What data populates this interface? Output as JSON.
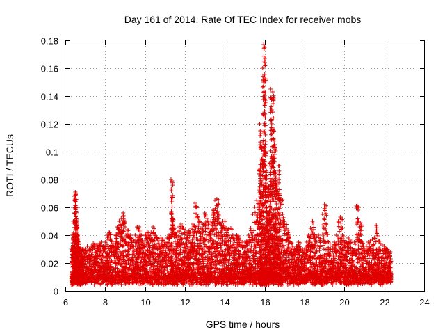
{
  "chart_data": {
    "type": "scatter",
    "title": "Day 161 of 2014, Rate Of TEC Index for receiver mobs",
    "xlabel": "GPS time / hours",
    "ylabel": "ROTI / TECUs",
    "xlim": [
      6,
      24
    ],
    "ylim": [
      0,
      0.18
    ],
    "xticks": [
      6,
      8,
      10,
      12,
      14,
      16,
      18,
      20,
      22,
      24
    ],
    "yticks": [
      0,
      0.02,
      0.04,
      0.06,
      0.08,
      0.1,
      0.12,
      0.14,
      0.16,
      0.18
    ],
    "xtick_labels": [
      "6",
      "8",
      "10",
      "12",
      "14",
      "16",
      "18",
      "20",
      "22",
      "24"
    ],
    "ytick_labels": [
      "0",
      "0.02",
      "0.04",
      "0.06",
      "0.08",
      "0.1",
      "0.12",
      "0.14",
      "0.16",
      "0.18"
    ],
    "grid": true,
    "marker": "+",
    "color": "#e00000",
    "series": [
      {
        "name": "ROTI",
        "x": [
          6.3,
          6.35,
          6.4,
          6.45,
          6.5,
          6.52,
          6.55,
          6.58,
          6.6,
          6.62,
          6.65,
          6.68,
          6.7,
          6.75,
          6.8,
          6.85,
          6.9,
          7.0,
          7.1,
          7.2,
          7.3,
          7.4,
          7.5,
          7.6,
          7.7,
          7.8,
          7.9,
          8.0,
          8.1,
          8.2,
          8.3,
          8.4,
          8.5,
          8.6,
          8.7,
          8.8,
          8.9,
          9.0,
          9.1,
          9.2,
          9.3,
          9.4,
          9.5,
          9.6,
          9.7,
          9.8,
          9.9,
          10.0,
          10.1,
          10.2,
          10.3,
          10.4,
          10.5,
          10.6,
          10.7,
          10.8,
          10.9,
          11.0,
          11.1,
          11.2,
          11.3,
          11.35,
          11.4,
          11.5,
          11.6,
          11.7,
          11.8,
          11.9,
          12.0,
          12.1,
          12.2,
          12.3,
          12.4,
          12.5,
          12.6,
          12.7,
          12.8,
          12.9,
          13.0,
          13.1,
          13.2,
          13.3,
          13.4,
          13.5,
          13.6,
          13.7,
          13.8,
          13.9,
          14.0,
          14.1,
          14.2,
          14.3,
          14.4,
          14.5,
          14.6,
          14.7,
          14.8,
          14.9,
          15.0,
          15.1,
          15.2,
          15.3,
          15.4,
          15.5,
          15.6,
          15.7,
          15.75,
          15.8,
          15.85,
          15.9,
          15.95,
          16.0,
          16.05,
          16.1,
          16.15,
          16.2,
          16.25,
          16.3,
          16.35,
          16.4,
          16.45,
          16.5,
          16.55,
          16.6,
          16.65,
          16.7,
          16.75,
          16.8,
          16.9,
          17.0,
          17.1,
          17.2,
          17.3,
          17.4,
          17.5,
          17.6,
          17.7,
          17.8,
          17.9,
          18.0,
          18.1,
          18.2,
          18.3,
          18.4,
          18.5,
          18.6,
          18.7,
          18.8,
          18.9,
          19.0,
          19.1,
          19.2,
          19.3,
          19.4,
          19.5,
          19.6,
          19.7,
          19.8,
          19.9,
          20.0,
          20.1,
          20.2,
          20.3,
          20.4,
          20.5,
          20.6,
          20.7,
          20.8,
          20.9,
          21.0,
          21.1,
          21.2,
          21.3,
          21.4,
          21.5,
          21.6,
          21.7,
          21.8,
          21.9,
          22.0,
          22.1,
          22.2,
          22.3
        ],
        "max": [
          0.03,
          0.04,
          0.05,
          0.068,
          0.071,
          0.07,
          0.06,
          0.048,
          0.045,
          0.04,
          0.035,
          0.032,
          0.03,
          0.03,
          0.03,
          0.03,
          0.03,
          0.03,
          0.032,
          0.03,
          0.032,
          0.034,
          0.033,
          0.032,
          0.034,
          0.035,
          0.032,
          0.035,
          0.04,
          0.042,
          0.036,
          0.034,
          0.04,
          0.046,
          0.05,
          0.052,
          0.056,
          0.046,
          0.044,
          0.04,
          0.038,
          0.036,
          0.04,
          0.046,
          0.046,
          0.04,
          0.035,
          0.04,
          0.042,
          0.04,
          0.042,
          0.046,
          0.04,
          0.038,
          0.036,
          0.038,
          0.035,
          0.035,
          0.038,
          0.04,
          0.08,
          0.079,
          0.052,
          0.045,
          0.042,
          0.046,
          0.048,
          0.045,
          0.042,
          0.042,
          0.043,
          0.045,
          0.048,
          0.063,
          0.055,
          0.05,
          0.045,
          0.048,
          0.056,
          0.052,
          0.045,
          0.05,
          0.058,
          0.065,
          0.066,
          0.055,
          0.048,
          0.05,
          0.05,
          0.045,
          0.04,
          0.045,
          0.04,
          0.036,
          0.04,
          0.038,
          0.036,
          0.035,
          0.035,
          0.036,
          0.04,
          0.045,
          0.055,
          0.06,
          0.065,
          0.087,
          0.12,
          0.113,
          0.103,
          0.16,
          0.177,
          0.175,
          0.1,
          0.06,
          0.073,
          0.075,
          0.092,
          0.145,
          0.13,
          0.143,
          0.115,
          0.105,
          0.085,
          0.075,
          0.07,
          0.09,
          0.07,
          0.066,
          0.055,
          0.05,
          0.045,
          0.04,
          0.035,
          0.032,
          0.03,
          0.032,
          0.035,
          0.03,
          0.03,
          0.03,
          0.035,
          0.04,
          0.045,
          0.05,
          0.04,
          0.035,
          0.04,
          0.035,
          0.055,
          0.062,
          0.042,
          0.035,
          0.03,
          0.032,
          0.035,
          0.04,
          0.05,
          0.053,
          0.04,
          0.035,
          0.035,
          0.038,
          0.035,
          0.03,
          0.035,
          0.061,
          0.05,
          0.049,
          0.035,
          0.03,
          0.032,
          0.035,
          0.036,
          0.037,
          0.038,
          0.047,
          0.036,
          0.034,
          0.033,
          0.032,
          0.03,
          0.028,
          0.028
        ]
      }
    ]
  }
}
